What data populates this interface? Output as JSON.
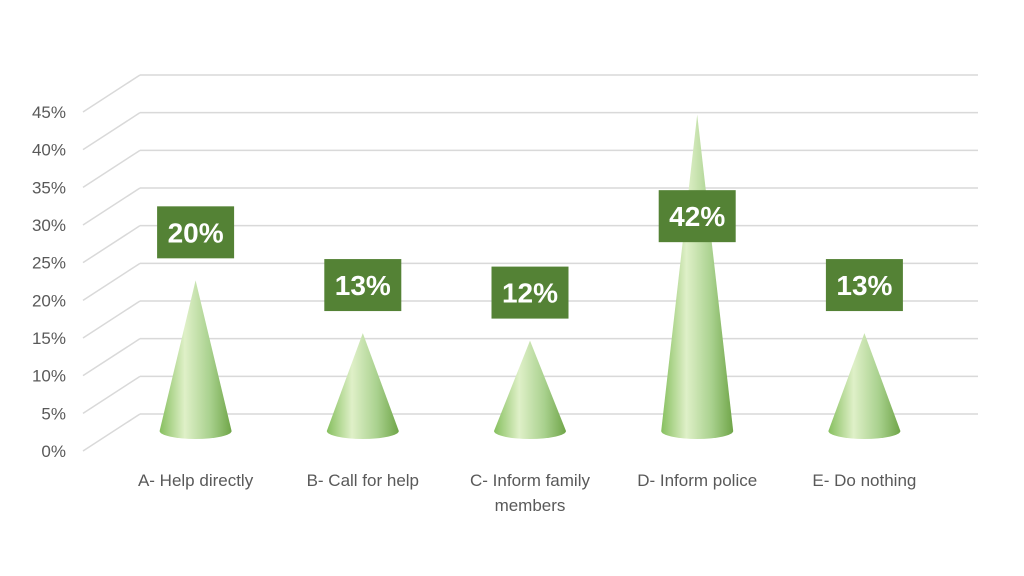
{
  "chart_data": {
    "type": "bar",
    "shape": "cone",
    "categories": [
      "A- Help directly",
      "B- Call for help",
      "C- Inform family members",
      "D- Inform police",
      "E- Do nothing"
    ],
    "category_lines": [
      [
        "A- Help directly"
      ],
      [
        "B- Call for help"
      ],
      [
        "C- Inform family",
        "members"
      ],
      [
        "D- Inform police"
      ],
      [
        "E- Do nothing"
      ]
    ],
    "values": [
      20,
      13,
      12,
      42,
      13
    ],
    "data_labels": [
      "20%",
      "13%",
      "12%",
      "42%",
      "13%"
    ],
    "y_ticks": [
      "0%",
      "5%",
      "10%",
      "15%",
      "20%",
      "25%",
      "30%",
      "35%",
      "40%",
      "45%"
    ],
    "ylim": [
      0,
      45
    ],
    "grid": true,
    "legend": "none",
    "title": "",
    "xlabel": "",
    "ylabel": "",
    "colors": {
      "cone_light": "#dff0c8",
      "cone_mid": "#a9d18e",
      "cone_dark": "#70ad47",
      "label_box": "#548235",
      "grid": "#d9d9d9",
      "text": "#595959"
    }
  }
}
